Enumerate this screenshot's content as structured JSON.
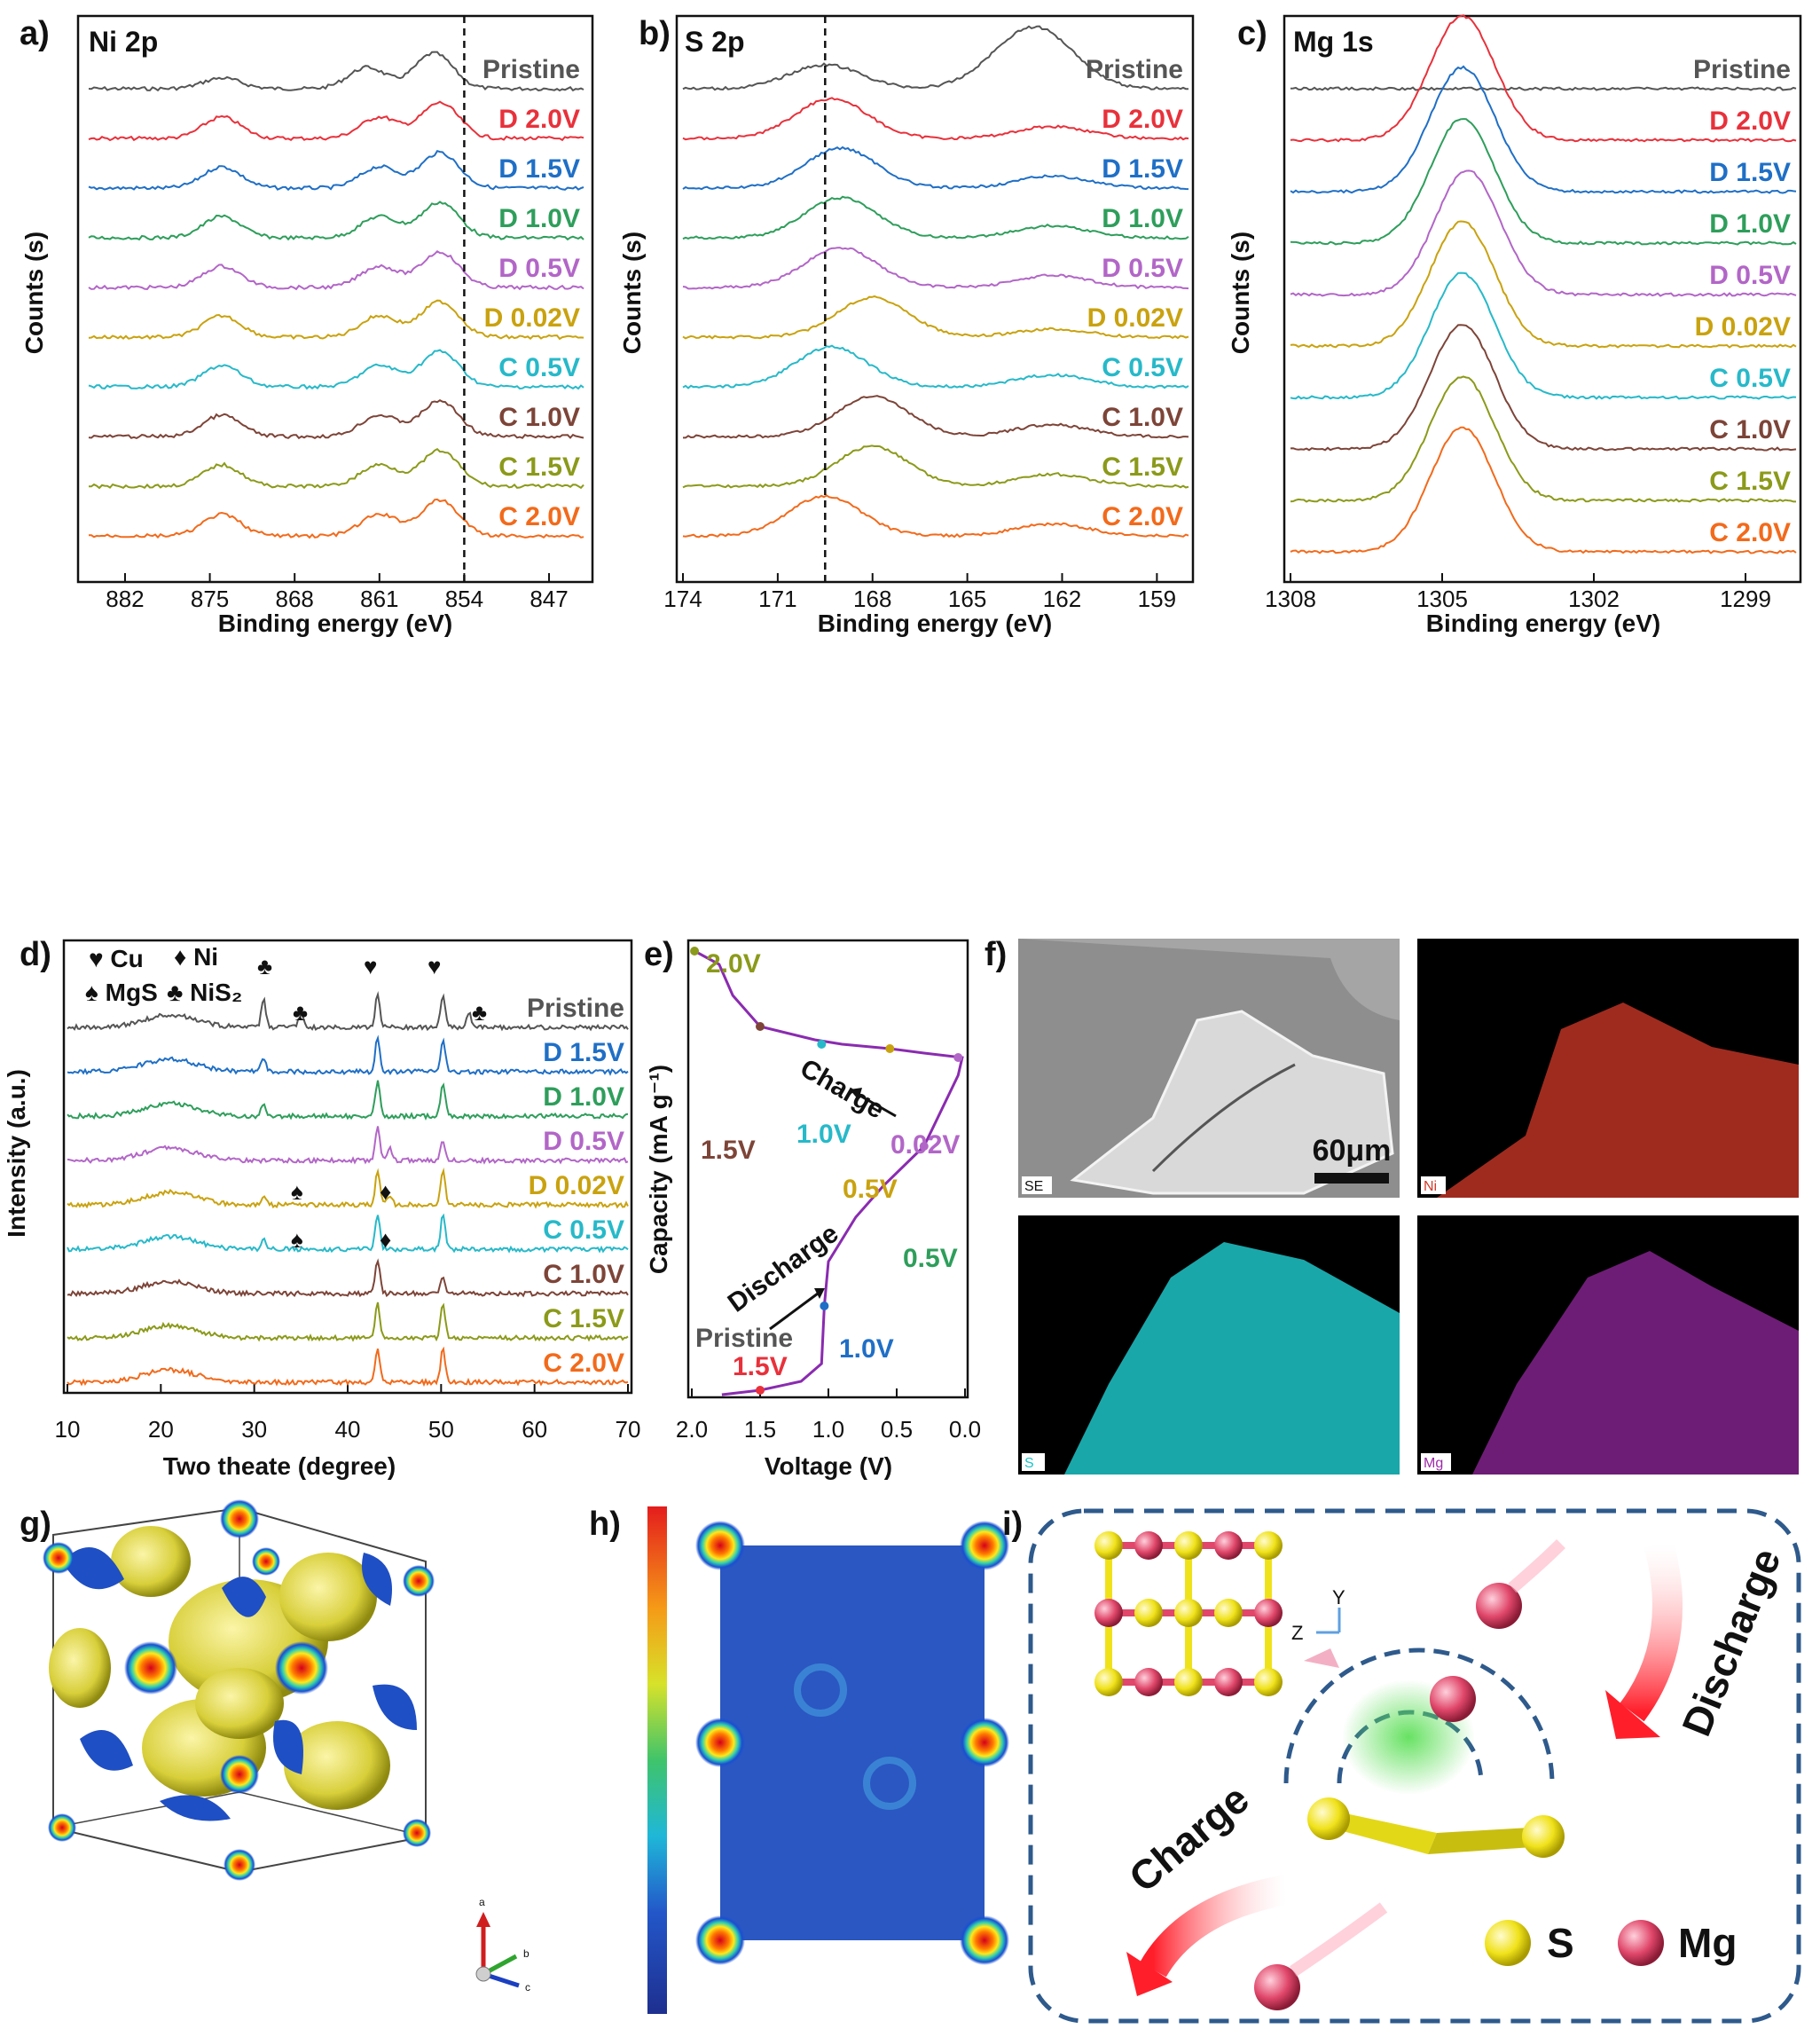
{
  "panels": {
    "a": {
      "label": "a)",
      "title": "Ni 2p"
    },
    "b": {
      "label": "b)",
      "title": "S 2p"
    },
    "c": {
      "label": "c)",
      "title": "Mg 1s"
    },
    "d": {
      "label": "d)"
    },
    "e": {
      "label": "e)"
    },
    "f": {
      "label": "f)",
      "scale_bar": "60μm",
      "maps": [
        "SE",
        "Ni",
        "S",
        "Mg"
      ]
    },
    "g": {
      "label": "g)",
      "axes_triad": [
        "a",
        "b",
        "c"
      ]
    },
    "h": {
      "label": "h)"
    },
    "i": {
      "label": "i)",
      "discharge": "Discharge",
      "charge": "Charge",
      "legend": [
        "S",
        "Mg"
      ],
      "axes": [
        "Y",
        "Z"
      ]
    }
  },
  "colors": {
    "pristine": "#555555",
    "D2.0": "#e8313b",
    "D1.5": "#1f6fc6",
    "D1.0": "#2e9e5b",
    "D0.5": "#b266c7",
    "D0.02": "#c9a20f",
    "C0.5": "#27b9c9",
    "C1.0": "#7d4438",
    "C1.5": "#8b9a1a",
    "C2.0": "#f26a1b",
    "curve_e": "#8a2bb0",
    "map_Ni": "#d43a2a",
    "map_S": "#1ec4c8",
    "map_Mg": "#9d2aa8",
    "sphere_S": "#f0e21a",
    "sphere_Mg": "#e0476a",
    "schematic_frame": "#2e5a8c"
  },
  "chart_data": [
    {
      "panel": "a",
      "type": "line",
      "title": "Ni 2p",
      "xlabel": "Binding energy (eV)",
      "ylabel": "Counts (s)",
      "xlim": [
        885,
        844
      ],
      "xticks": [
        "882",
        "875",
        "868",
        "861",
        "854",
        "847"
      ],
      "reference_line": 854,
      "series": [
        {
          "name": "Pristine",
          "peaks": [
            [
              874,
              0.3
            ],
            [
              862,
              0.6
            ],
            [
              856.5,
              1.0
            ]
          ]
        },
        {
          "name": "D 2.0V",
          "peaks": [
            [
              874,
              0.6
            ],
            [
              861,
              0.6
            ],
            [
              856,
              1.0
            ]
          ]
        },
        {
          "name": "D 1.5V",
          "peaks": [
            [
              874,
              0.6
            ],
            [
              861,
              0.6
            ],
            [
              856,
              1.0
            ]
          ]
        },
        {
          "name": "D 1.0V",
          "peaks": [
            [
              874,
              0.6
            ],
            [
              861,
              0.6
            ],
            [
              856,
              1.0
            ]
          ]
        },
        {
          "name": "D 0.5V",
          "peaks": [
            [
              874,
              0.6
            ],
            [
              861,
              0.6
            ],
            [
              856,
              1.0
            ]
          ]
        },
        {
          "name": "D 0.02V",
          "peaks": [
            [
              874,
              0.6
            ],
            [
              861,
              0.6
            ],
            [
              856,
              1.0
            ]
          ]
        },
        {
          "name": "C 0.5V",
          "peaks": [
            [
              874,
              0.6
            ],
            [
              861,
              0.6
            ],
            [
              856,
              1.0
            ]
          ]
        },
        {
          "name": "C 1.0V",
          "peaks": [
            [
              874,
              0.6
            ],
            [
              861,
              0.6
            ],
            [
              856,
              1.0
            ]
          ]
        },
        {
          "name": "C 1.5V",
          "peaks": [
            [
              874,
              0.6
            ],
            [
              861,
              0.6
            ],
            [
              856,
              1.0
            ]
          ]
        },
        {
          "name": "C 2.0V",
          "peaks": [
            [
              874,
              0.6
            ],
            [
              861,
              0.6
            ],
            [
              856,
              1.0
            ]
          ]
        }
      ]
    },
    {
      "panel": "b",
      "type": "line",
      "title": "S 2p",
      "xlabel": "Binding energy (eV)",
      "ylabel": "Counts (s)",
      "xlim": [
        174,
        158
      ],
      "xticks": [
        "174",
        "171",
        "168",
        "165",
        "162",
        "159"
      ],
      "reference_line": 169.5,
      "series": [
        {
          "name": "Pristine",
          "peaks": [
            [
              169.5,
              0.6
            ],
            [
              163.5,
              0.7
            ],
            [
              162.5,
              1.0
            ]
          ]
        },
        {
          "name": "D 2.0V",
          "peaks": [
            [
              169.3,
              1.0
            ],
            [
              162.3,
              0.3
            ]
          ]
        },
        {
          "name": "D 1.5V",
          "peaks": [
            [
              169,
              1.0
            ],
            [
              162.3,
              0.3
            ]
          ]
        },
        {
          "name": "D 1.0V",
          "peaks": [
            [
              169,
              1.0
            ],
            [
              162.3,
              0.3
            ]
          ]
        },
        {
          "name": "D 0.5V",
          "peaks": [
            [
              169,
              1.0
            ],
            [
              162.3,
              0.3
            ]
          ]
        },
        {
          "name": "D 0.02V",
          "peaks": [
            [
              168,
              1.0
            ],
            [
              162.3,
              0.2
            ]
          ]
        },
        {
          "name": "C 0.5V",
          "peaks": [
            [
              169.3,
              1.0
            ],
            [
              162.3,
              0.3
            ]
          ]
        },
        {
          "name": "C 1.0V",
          "peaks": [
            [
              168,
              1.0
            ],
            [
              162.3,
              0.3
            ]
          ]
        },
        {
          "name": "C 1.5V",
          "peaks": [
            [
              168,
              1.0
            ],
            [
              162.3,
              0.3
            ]
          ]
        },
        {
          "name": "C 2.0V",
          "peaks": [
            [
              169.5,
              1.0
            ],
            [
              162.3,
              0.3
            ]
          ]
        }
      ]
    },
    {
      "panel": "c",
      "type": "line",
      "title": "Mg 1s",
      "xlabel": "Binding energy (eV)",
      "ylabel": "Counts (s)",
      "xlim": [
        1308,
        1298
      ],
      "xticks": [
        "1308",
        "1305",
        "1302",
        "1299"
      ],
      "series": [
        {
          "name": "Pristine",
          "peaks": []
        },
        {
          "name": "D 2.0V",
          "peaks": [
            [
              1304.6,
              1.0
            ]
          ]
        },
        {
          "name": "D 1.5V",
          "peaks": [
            [
              1304.6,
              1.0
            ]
          ]
        },
        {
          "name": "D 1.0V",
          "peaks": [
            [
              1304.6,
              1.0
            ]
          ]
        },
        {
          "name": "D 0.5V",
          "peaks": [
            [
              1304.5,
              1.0
            ]
          ]
        },
        {
          "name": "D 0.02V",
          "peaks": [
            [
              1304.6,
              1.0
            ]
          ]
        },
        {
          "name": "C 0.5V",
          "peaks": [
            [
              1304.6,
              1.0
            ]
          ]
        },
        {
          "name": "C 1.0V",
          "peaks": [
            [
              1304.6,
              1.0
            ]
          ]
        },
        {
          "name": "C 1.5V",
          "peaks": [
            [
              1304.6,
              1.0
            ]
          ]
        },
        {
          "name": "C 2.0V",
          "peaks": [
            [
              1304.6,
              1.0
            ]
          ]
        }
      ]
    },
    {
      "panel": "d",
      "type": "line",
      "xlabel": "Two theate (degree)",
      "ylabel": "Intensity (a.u.)",
      "xlim": [
        10,
        70
      ],
      "xticks": [
        "10",
        "20",
        "30",
        "40",
        "50",
        "60",
        "70"
      ],
      "legend": [
        "♥ Cu",
        "♦ Ni",
        "♠ MgS",
        "♣ NiS₂"
      ],
      "series": [
        {
          "name": "Pristine",
          "peaks": [
            [
              31,
              0.8
            ],
            [
              35,
              0.4
            ],
            [
              43.2,
              1.0
            ],
            [
              50.2,
              1.0
            ],
            [
              53,
              0.4
            ]
          ]
        },
        {
          "name": "D 1.5V",
          "peaks": [
            [
              31,
              0.4
            ],
            [
              43.2,
              1.0
            ],
            [
              50.2,
              1.0
            ]
          ]
        },
        {
          "name": "D 1.0V",
          "peaks": [
            [
              31,
              0.4
            ],
            [
              43.2,
              1.0
            ],
            [
              50.2,
              1.0
            ]
          ]
        },
        {
          "name": "D 0.5V",
          "peaks": [
            [
              43.2,
              1.0
            ],
            [
              44.5,
              0.4
            ],
            [
              50.2,
              0.6
            ]
          ]
        },
        {
          "name": "D 0.02V",
          "peaks": [
            [
              31,
              0.3
            ],
            [
              43.2,
              1.0
            ],
            [
              44.5,
              0.3
            ],
            [
              50.2,
              1.0
            ]
          ]
        },
        {
          "name": "C 0.5V",
          "peaks": [
            [
              31,
              0.3
            ],
            [
              43.2,
              1.0
            ],
            [
              50.2,
              1.0
            ]
          ]
        },
        {
          "name": "C 1.0V",
          "peaks": [
            [
              43.2,
              1.0
            ],
            [
              50.2,
              0.5
            ]
          ]
        },
        {
          "name": "C 1.5V",
          "peaks": [
            [
              43.2,
              1.0
            ],
            [
              50.2,
              1.0
            ]
          ]
        },
        {
          "name": "C 2.0V",
          "peaks": [
            [
              43.2,
              1.0
            ],
            [
              50.2,
              1.0
            ]
          ]
        }
      ]
    },
    {
      "panel": "e",
      "type": "line",
      "xlabel": "Voltage (V)",
      "ylabel": "Capacity (mA g⁻¹)",
      "xlim": [
        2.0,
        0.0
      ],
      "xticks": [
        "2.0",
        "1.5",
        "1.0",
        "0.5",
        "0.0"
      ],
      "curve": [
        [
          1.78,
          0.0
        ],
        [
          1.5,
          0.01
        ],
        [
          1.2,
          0.03
        ],
        [
          1.05,
          0.07
        ],
        [
          1.03,
          0.2
        ],
        [
          1.0,
          0.3
        ],
        [
          0.8,
          0.4
        ],
        [
          0.6,
          0.47
        ],
        [
          0.3,
          0.56
        ],
        [
          0.05,
          0.72
        ],
        [
          0.02,
          0.76
        ],
        [
          0.3,
          0.77
        ],
        [
          0.55,
          0.78
        ],
        [
          0.9,
          0.79
        ],
        [
          1.1,
          0.8
        ],
        [
          1.5,
          0.83
        ],
        [
          1.7,
          0.9
        ],
        [
          1.8,
          0.97
        ],
        [
          1.98,
          1.0
        ]
      ],
      "annotations": [
        "2.0V",
        "1.5V",
        "1.0V",
        "0.02V",
        "0.5V",
        "0.5V",
        "Pristine",
        "1.5V",
        "1.0V"
      ],
      "charge_label": "Charge",
      "discharge_label": "Discharge"
    }
  ]
}
